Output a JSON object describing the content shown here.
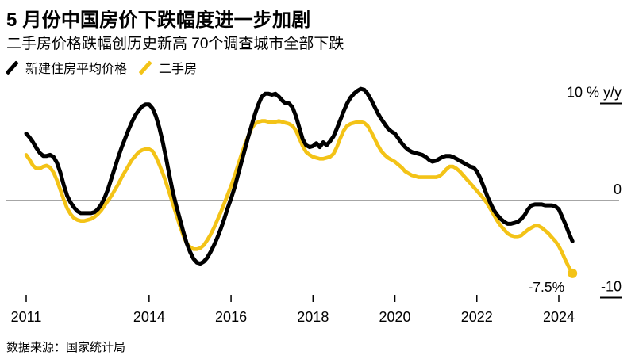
{
  "header": {
    "title": "5 月份中国房价下跌幅度进一步加剧",
    "subtitle": "二手房价格跌幅创历史新高 70个调查城市全部下跌"
  },
  "footer": {
    "source": "数据来源：国家统计局"
  },
  "chart_data": {
    "type": "line",
    "unit": "% y/y",
    "x_start": "2011-01",
    "x_end": "2024-05",
    "x_interval": "monthly",
    "x_ticks": [
      2011,
      2014,
      2016,
      2018,
      2020,
      2022,
      2024
    ],
    "y_ticks": [
      {
        "label": "10 % y/y",
        "value": 10
      },
      {
        "label": "0",
        "value": 0
      },
      {
        "label": "-10",
        "value": -10
      }
    ],
    "ylim": [
      -10,
      11.5
    ],
    "grid": "zero-line-only",
    "legend_position": "top-left",
    "axis_color": "#4d4d4d",
    "tick_color": "#000000",
    "annotation": {
      "text": "-7.5%",
      "series": "二手房",
      "value": -7.5
    },
    "series": [
      {
        "name": "新建住房平均价格",
        "color": "#000000",
        "values": [
          6.9,
          6.5,
          6.0,
          5.4,
          4.9,
          4.6,
          4.6,
          4.7,
          4.5,
          3.9,
          2.9,
          1.6,
          0.5,
          -0.2,
          -0.7,
          -1.1,
          -1.3,
          -1.3,
          -1.3,
          -1.3,
          -1.2,
          -0.9,
          -0.4,
          0.3,
          1.2,
          2.3,
          3.4,
          4.5,
          5.5,
          6.4,
          7.3,
          8.1,
          8.8,
          9.3,
          9.7,
          9.9,
          9.9,
          9.5,
          8.7,
          7.5,
          6.0,
          4.3,
          2.5,
          0.8,
          -0.6,
          -1.9,
          -3.2,
          -4.4,
          -5.3,
          -6.0,
          -6.4,
          -6.5,
          -6.3,
          -5.9,
          -5.3,
          -4.6,
          -3.8,
          -2.9,
          -1.9,
          -0.8,
          0.2,
          1.3,
          2.6,
          3.9,
          5.2,
          6.5,
          7.7,
          8.9,
          9.9,
          10.7,
          11.0,
          11.0,
          10.9,
          11.0,
          10.7,
          10.3,
          10.0,
          10.0,
          9.6,
          8.7,
          7.5,
          6.3,
          5.7,
          5.5,
          5.6,
          5.9,
          5.5,
          6.0,
          5.7,
          6.1,
          6.6,
          7.4,
          8.3,
          9.2,
          10.0,
          10.6,
          11.0,
          11.3,
          11.5,
          11.4,
          11.0,
          10.4,
          9.7,
          9.0,
          8.4,
          7.9,
          7.4,
          7.1,
          6.9,
          6.4,
          5.9,
          5.5,
          5.2,
          5.0,
          4.9,
          4.8,
          4.7,
          4.5,
          4.2,
          4.0,
          4.1,
          4.3,
          4.5,
          4.6,
          4.6,
          4.5,
          4.3,
          4.1,
          3.9,
          3.7,
          3.5,
          3.4,
          3.0,
          2.3,
          1.4,
          0.5,
          -0.3,
          -1.0,
          -1.5,
          -1.9,
          -2.2,
          -2.4,
          -2.4,
          -2.3,
          -2.2,
          -1.9,
          -1.5,
          -0.9,
          -0.5,
          -0.4,
          -0.4,
          -0.4,
          -0.5,
          -0.5,
          -0.5,
          -0.6,
          -0.9,
          -1.7,
          -2.5,
          -3.4,
          -4.2
        ]
      },
      {
        "name": "二手房",
        "color": "#F3C317",
        "values": [
          4.7,
          4.2,
          3.6,
          3.3,
          3.3,
          3.5,
          3.6,
          3.4,
          2.9,
          2.1,
          1.1,
          0.1,
          -0.8,
          -1.4,
          -1.8,
          -2.0,
          -2.1,
          -2.1,
          -2.0,
          -1.9,
          -1.7,
          -1.4,
          -1.0,
          -0.5,
          0.0,
          0.5,
          1.1,
          1.7,
          2.4,
          3.0,
          3.6,
          4.2,
          4.6,
          5.0,
          5.2,
          5.3,
          5.3,
          5.1,
          4.5,
          3.7,
          2.8,
          1.8,
          0.7,
          -0.4,
          -1.5,
          -2.6,
          -3.6,
          -4.4,
          -4.8,
          -5.0,
          -5.0,
          -4.9,
          -4.6,
          -4.1,
          -3.5,
          -2.8,
          -2.0,
          -1.2,
          -0.3,
          0.6,
          1.5,
          2.5,
          3.6,
          4.7,
          5.7,
          6.6,
          7.4,
          7.9,
          8.1,
          8.2,
          8.2,
          8.1,
          8.1,
          8.1,
          8.2,
          8.1,
          8.0,
          7.9,
          7.7,
          7.2,
          6.4,
          5.6,
          5.0,
          4.7,
          4.5,
          4.4,
          4.3,
          4.3,
          4.4,
          4.5,
          4.8,
          5.5,
          6.4,
          7.2,
          7.7,
          7.9,
          8.0,
          8.1,
          8.1,
          8.0,
          7.7,
          7.1,
          6.4,
          5.7,
          5.1,
          4.7,
          4.4,
          4.2,
          4.0,
          3.7,
          3.4,
          3.0,
          2.8,
          2.6,
          2.5,
          2.4,
          2.4,
          2.4,
          2.4,
          2.4,
          2.4,
          2.5,
          2.8,
          3.2,
          3.5,
          3.5,
          3.3,
          3.0,
          2.6,
          2.2,
          1.8,
          1.4,
          1.0,
          0.6,
          0.2,
          -0.3,
          -0.9,
          -1.5,
          -2.1,
          -2.6,
          -3.0,
          -3.4,
          -3.6,
          -3.7,
          -3.7,
          -3.6,
          -3.3,
          -3.0,
          -2.8,
          -2.6,
          -2.6,
          -2.8,
          -3.1,
          -3.4,
          -3.8,
          -4.2,
          -4.7,
          -5.4,
          -6.2,
          -6.9,
          -7.5
        ]
      }
    ]
  }
}
